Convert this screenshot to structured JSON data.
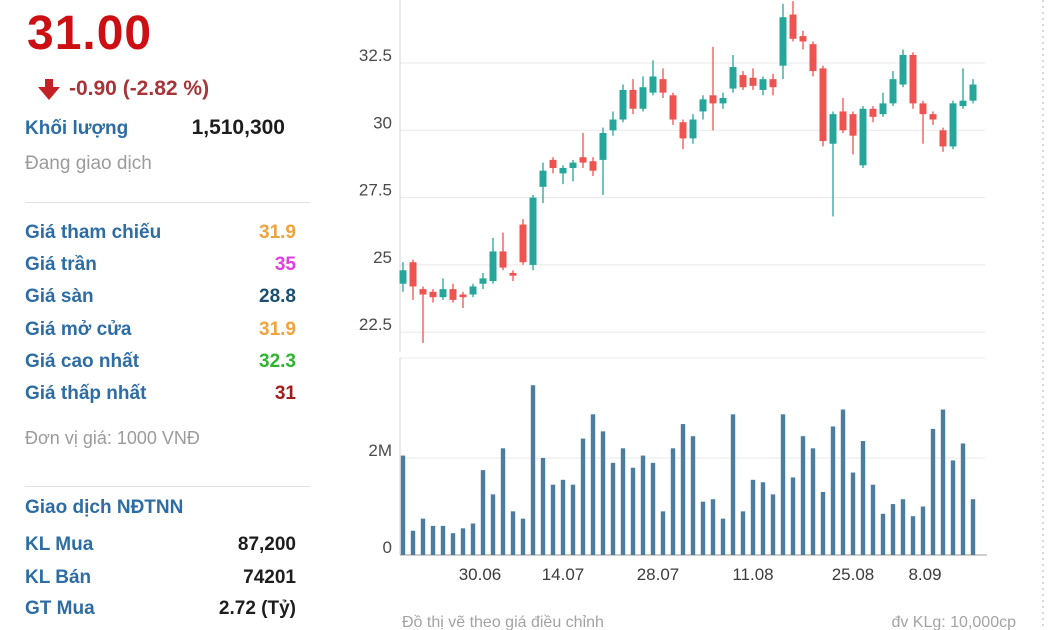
{
  "quote": {
    "last_price": "31.00",
    "change_text": "-0.90 (-2.82 %)",
    "price_color": "#cc0f13",
    "change_color": "#a93438",
    "volume_label": "Khối lượng",
    "volume_value": "1,510,300",
    "status": "Đang giao dịch"
  },
  "price_table": {
    "rows": [
      {
        "label": "Giá tham chiếu",
        "value": "31.9",
        "color": "#f0a33c"
      },
      {
        "label": "Giá trần",
        "value": "35",
        "color": "#e03ee0"
      },
      {
        "label": "Giá sàn",
        "value": "28.8",
        "color": "#1b4f72"
      },
      {
        "label": "Giá mở cửa",
        "value": "31.9",
        "color": "#f0a33c"
      },
      {
        "label": "Giá cao nhất",
        "value": "32.3",
        "color": "#2eb52e"
      },
      {
        "label": "Giá thấp nhất",
        "value": "31",
        "color": "#a21c1c"
      }
    ],
    "unit_note": "Đơn vị giá: 1000 VNĐ"
  },
  "foreign_table": {
    "title": "Giao dịch NĐTNN",
    "rows": [
      {
        "label": "KL Mua",
        "value": "87,200"
      },
      {
        "label": "KL Bán",
        "value": "74201"
      },
      {
        "label": "GT Mua",
        "value": "2.72 (Tỷ)"
      }
    ]
  },
  "chart_footer": {
    "left": "Đồ thị vẽ theo giá điều chỉnh",
    "right": "đv KLg: 10,000cp"
  },
  "chart_data": [
    {
      "type": "candlestick",
      "title": "",
      "x_labels": [
        "30.06",
        "14.07",
        "28.07",
        "11.08",
        "25.08",
        "8.09"
      ],
      "y_ticks": [
        "32.5",
        "30",
        "27.5",
        "25",
        "22.5"
      ],
      "y_tick_values": [
        32.5,
        30,
        27.5,
        25,
        22.5
      ],
      "ylim": [
        21.9,
        34.9
      ],
      "up_color": "#26a69a",
      "down_color": "#ef5350",
      "grid": true,
      "candles_ohlc": [
        [
          24.3,
          25.1,
          24.0,
          24.8
        ],
        [
          25.1,
          25.2,
          23.7,
          24.2
        ],
        [
          24.1,
          24.2,
          22.1,
          23.9
        ],
        [
          24.0,
          24.1,
          23.6,
          23.8
        ],
        [
          23.8,
          24.5,
          23.7,
          24.1
        ],
        [
          24.1,
          24.3,
          23.6,
          23.7
        ],
        [
          23.9,
          24.0,
          23.4,
          23.8
        ],
        [
          23.9,
          24.3,
          23.8,
          24.2
        ],
        [
          24.3,
          24.7,
          24.1,
          24.5
        ],
        [
          24.4,
          26.0,
          24.3,
          25.5
        ],
        [
          25.5,
          26.2,
          24.8,
          24.9
        ],
        [
          24.7,
          24.8,
          24.4,
          24.6
        ],
        [
          26.5,
          26.7,
          25.0,
          25.1
        ],
        [
          25.0,
          27.6,
          24.8,
          27.5
        ],
        [
          27.9,
          28.8,
          27.3,
          28.5
        ],
        [
          28.9,
          29.0,
          28.4,
          28.6
        ],
        [
          28.4,
          28.7,
          28.0,
          28.6
        ],
        [
          28.6,
          28.9,
          28.1,
          28.8
        ],
        [
          29.0,
          29.9,
          28.6,
          28.8
        ],
        [
          28.85,
          29.0,
          28.3,
          28.5
        ],
        [
          28.9,
          30.1,
          27.6,
          29.9
        ],
        [
          30.0,
          30.7,
          29.8,
          30.4
        ],
        [
          30.4,
          31.7,
          30.3,
          31.5
        ],
        [
          31.5,
          31.9,
          30.6,
          30.8
        ],
        [
          30.8,
          32.0,
          30.7,
          31.6
        ],
        [
          31.4,
          32.6,
          31.3,
          32.0
        ],
        [
          31.9,
          32.3,
          31.2,
          31.4
        ],
        [
          31.3,
          31.4,
          30.2,
          30.4
        ],
        [
          30.3,
          30.4,
          29.3,
          29.7
        ],
        [
          29.7,
          30.6,
          29.5,
          30.4
        ],
        [
          30.7,
          31.3,
          30.4,
          31.15
        ],
        [
          31.3,
          33.1,
          30.0,
          31.0
        ],
        [
          31.0,
          31.4,
          30.8,
          31.2
        ],
        [
          31.55,
          32.8,
          31.4,
          32.35
        ],
        [
          32.05,
          32.2,
          31.5,
          31.6
        ],
        [
          31.95,
          32.3,
          31.5,
          31.65
        ],
        [
          31.5,
          32.0,
          31.3,
          31.9
        ],
        [
          31.9,
          32.1,
          31.3,
          31.6
        ],
        [
          32.4,
          34.7,
          31.9,
          34.2
        ],
        [
          34.3,
          34.8,
          33.3,
          33.4
        ],
        [
          33.5,
          33.7,
          33.0,
          33.3
        ],
        [
          33.2,
          33.3,
          32.0,
          32.2
        ],
        [
          32.3,
          32.4,
          29.4,
          29.6
        ],
        [
          29.5,
          30.7,
          26.8,
          30.6
        ],
        [
          30.7,
          31.2,
          29.9,
          30.0
        ],
        [
          30.6,
          30.7,
          29.1,
          29.8
        ],
        [
          28.7,
          30.9,
          28.6,
          30.8
        ],
        [
          30.8,
          30.9,
          30.3,
          30.5
        ],
        [
          30.6,
          31.4,
          30.5,
          31.0
        ],
        [
          31.0,
          32.2,
          30.9,
          31.9
        ],
        [
          31.7,
          33.0,
          31.6,
          32.8
        ],
        [
          32.8,
          32.9,
          30.8,
          31.0
        ],
        [
          31.0,
          31.1,
          29.5,
          30.6
        ],
        [
          30.6,
          30.7,
          30.2,
          30.4
        ],
        [
          30.0,
          30.1,
          29.2,
          29.4
        ],
        [
          29.4,
          31.1,
          29.3,
          31.0
        ],
        [
          30.9,
          32.3,
          30.8,
          31.1
        ],
        [
          31.1,
          31.9,
          31.0,
          31.7
        ]
      ]
    },
    {
      "type": "bar",
      "name": "volume",
      "y_ticks": [
        "2M",
        "0"
      ],
      "y_tick_values": [
        2,
        0
      ],
      "bar_color": "#4d7d9e",
      "grid": true,
      "values_millions": [
        2.05,
        0.5,
        0.75,
        0.6,
        0.6,
        0.45,
        0.55,
        0.65,
        1.75,
        1.25,
        2.2,
        0.9,
        0.75,
        3.5,
        2.0,
        1.45,
        1.55,
        1.45,
        2.4,
        2.9,
        2.55,
        1.9,
        2.2,
        1.8,
        2.05,
        1.9,
        0.9,
        2.2,
        2.7,
        2.45,
        1.1,
        1.15,
        0.75,
        2.9,
        0.9,
        1.55,
        1.5,
        1.25,
        2.9,
        1.6,
        2.45,
        2.2,
        1.3,
        2.65,
        3.0,
        1.7,
        2.35,
        1.45,
        0.85,
        1.05,
        1.15,
        0.8,
        1.0,
        2.6,
        3.0,
        1.95,
        2.3,
        1.15
      ]
    }
  ]
}
